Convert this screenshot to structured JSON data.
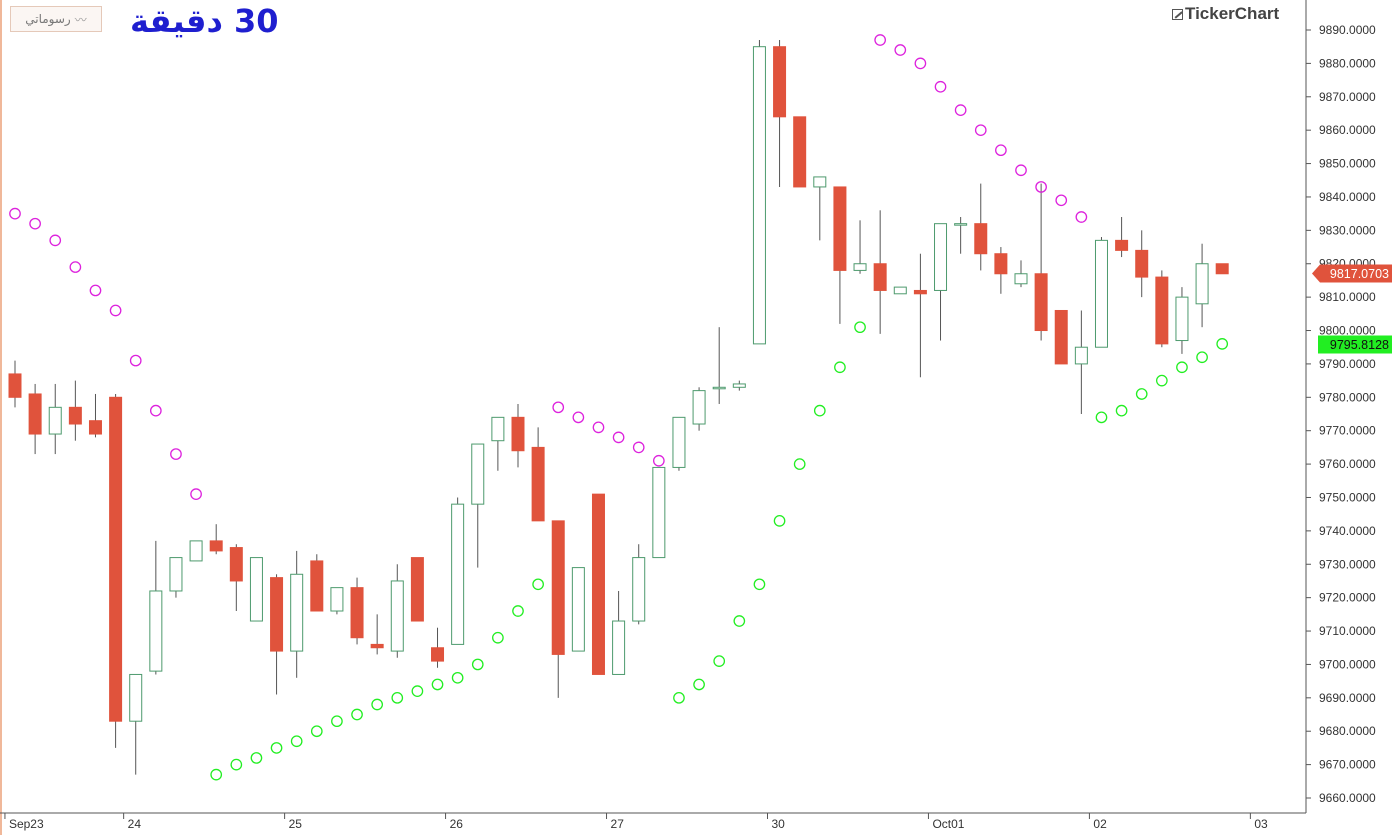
{
  "header": {
    "drawings_button_label": "رسوماتي",
    "drawings_icon": "line-chart-icon",
    "timeframe_label": "30 دقيقة",
    "brand_logo": "TickerChart"
  },
  "price_labels": {
    "last_price": "9817.0703",
    "last_price_color": "#e0533c",
    "indicator_value": "9795.8128",
    "indicator_color": "#22ee22"
  },
  "colors": {
    "up_candle": "#4d9a6d",
    "down_candle": "#e0533c",
    "sar_above": "#dd22dd",
    "sar_below": "#22ee22"
  },
  "chart_data": {
    "type": "candlestick",
    "y_axis": {
      "min": 9660,
      "max": 9890,
      "ticks": [
        "9660.0000",
        "9670.0000",
        "9680.0000",
        "9690.0000",
        "9700.0000",
        "9710.0000",
        "9720.0000",
        "9730.0000",
        "9740.0000",
        "9750.0000",
        "9760.0000",
        "9770.0000",
        "9780.0000",
        "9790.0000",
        "9800.0000",
        "9810.0000",
        "9820.0000",
        "9830.0000",
        "9840.0000",
        "9850.0000",
        "9860.0000",
        "9870.0000",
        "9880.0000",
        "9890.0000"
      ]
    },
    "x_axis": {
      "labels": [
        {
          "text": "Sep23",
          "index": -0.5
        },
        {
          "text": "24",
          "index": 5.4
        },
        {
          "text": "25",
          "index": 13.4
        },
        {
          "text": "26",
          "index": 21.4
        },
        {
          "text": "27",
          "index": 29.4
        },
        {
          "text": "30",
          "index": 37.4
        },
        {
          "text": "Oct01",
          "index": 45.4
        },
        {
          "text": "02",
          "index": 53.4
        },
        {
          "text": "03",
          "index": 61.4
        }
      ]
    },
    "candles": [
      {
        "o": 9787,
        "h": 9791,
        "l": 9777,
        "c": 9780
      },
      {
        "o": 9781,
        "h": 9784,
        "l": 9763,
        "c": 9769
      },
      {
        "o": 9769,
        "h": 9784,
        "l": 9763,
        "c": 9777
      },
      {
        "o": 9777,
        "h": 9785,
        "l": 9767,
        "c": 9772
      },
      {
        "o": 9773,
        "h": 9781,
        "l": 9768,
        "c": 9769
      },
      {
        "o": 9780,
        "h": 9781,
        "l": 9675,
        "c": 9683
      },
      {
        "o": 9683,
        "h": 9697,
        "l": 9667,
        "c": 9697
      },
      {
        "o": 9698,
        "h": 9737,
        "l": 9697,
        "c": 9722
      },
      {
        "o": 9722,
        "h": 9732,
        "l": 9720,
        "c": 9732
      },
      {
        "o": 9731,
        "h": 9737,
        "l": 9731,
        "c": 9737
      },
      {
        "o": 9737,
        "h": 9742,
        "l": 9733,
        "c": 9734
      },
      {
        "o": 9735,
        "h": 9736,
        "l": 9716,
        "c": 9725
      },
      {
        "o": 9713,
        "h": 9732,
        "l": 9713,
        "c": 9732
      },
      {
        "o": 9726,
        "h": 9727,
        "l": 9691,
        "c": 9704
      },
      {
        "o": 9704,
        "h": 9734,
        "l": 9696,
        "c": 9727
      },
      {
        "o": 9731,
        "h": 9733,
        "l": 9716,
        "c": 9716
      },
      {
        "o": 9716,
        "h": 9723,
        "l": 9715,
        "c": 9723
      },
      {
        "o": 9723,
        "h": 9726,
        "l": 9706,
        "c": 9708
      },
      {
        "o": 9706,
        "h": 9715,
        "l": 9703,
        "c": 9705
      },
      {
        "o": 9704,
        "h": 9730,
        "l": 9702,
        "c": 9725
      },
      {
        "o": 9732,
        "h": 9732,
        "l": 9713,
        "c": 9713
      },
      {
        "o": 9705,
        "h": 9711,
        "l": 9699,
        "c": 9701
      },
      {
        "o": 9706,
        "h": 9750,
        "l": 9706,
        "c": 9748
      },
      {
        "o": 9748,
        "h": 9766,
        "l": 9729,
        "c": 9766
      },
      {
        "o": 9767,
        "h": 9774,
        "l": 9758,
        "c": 9774
      },
      {
        "o": 9774,
        "h": 9778,
        "l": 9759,
        "c": 9764
      },
      {
        "o": 9765,
        "h": 9771,
        "l": 9743,
        "c": 9743
      },
      {
        "o": 9743,
        "h": 9743,
        "l": 9690,
        "c": 9703
      },
      {
        "o": 9704,
        "h": 9729,
        "l": 9704,
        "c": 9729
      },
      {
        "o": 9751,
        "h": 9751,
        "l": 9697,
        "c": 9697
      },
      {
        "o": 9697,
        "h": 9722,
        "l": 9697,
        "c": 9713
      },
      {
        "o": 9713,
        "h": 9736,
        "l": 9712,
        "c": 9732
      },
      {
        "o": 9732,
        "h": 9759,
        "l": 9732,
        "c": 9759
      },
      {
        "o": 9759,
        "h": 9774,
        "l": 9758,
        "c": 9774
      },
      {
        "o": 9772,
        "h": 9783,
        "l": 9770,
        "c": 9782
      },
      {
        "o": 9783,
        "h": 9801,
        "l": 9778,
        "c": 9783
      },
      {
        "o": 9783,
        "h": 9785,
        "l": 9782,
        "c": 9784
      },
      {
        "o": 9796,
        "h": 9887,
        "l": 9796,
        "c": 9885
      },
      {
        "o": 9885,
        "h": 9887,
        "l": 9843,
        "c": 9864
      },
      {
        "o": 9864,
        "h": 9864,
        "l": 9843,
        "c": 9843
      },
      {
        "o": 9843,
        "h": 9846,
        "l": 9827,
        "c": 9846
      },
      {
        "o": 9843,
        "h": 9843,
        "l": 9802,
        "c": 9818
      },
      {
        "o": 9818,
        "h": 9833,
        "l": 9817,
        "c": 9820
      },
      {
        "o": 9820,
        "h": 9836,
        "l": 9799,
        "c": 9812
      },
      {
        "o": 9811,
        "h": 9813,
        "l": 9811,
        "c": 9813
      },
      {
        "o": 9812,
        "h": 9823,
        "l": 9786,
        "c": 9811
      },
      {
        "o": 9812,
        "h": 9832,
        "l": 9797,
        "c": 9832
      },
      {
        "o": 9832,
        "h": 9834,
        "l": 9823,
        "c": 9832
      },
      {
        "o": 9832,
        "h": 9844,
        "l": 9818,
        "c": 9823
      },
      {
        "o": 9823,
        "h": 9825,
        "l": 9811,
        "c": 9817
      },
      {
        "o": 9814,
        "h": 9821,
        "l": 9813,
        "c": 9817
      },
      {
        "o": 9817,
        "h": 9844,
        "l": 9797,
        "c": 9800
      },
      {
        "o": 9806,
        "h": 9806,
        "l": 9790,
        "c": 9790
      },
      {
        "o": 9790,
        "h": 9806,
        "l": 9775,
        "c": 9795
      },
      {
        "o": 9795,
        "h": 9828,
        "l": 9795,
        "c": 9827
      },
      {
        "o": 9827,
        "h": 9834,
        "l": 9822,
        "c": 9824
      },
      {
        "o": 9824,
        "h": 9830,
        "l": 9810,
        "c": 9816
      },
      {
        "o": 9816,
        "h": 9818,
        "l": 9795,
        "c": 9796
      },
      {
        "o": 9797,
        "h": 9813,
        "l": 9793,
        "c": 9810
      },
      {
        "o": 9808,
        "h": 9826,
        "l": 9801,
        "c": 9820
      },
      {
        "o": 9820,
        "h": 9820,
        "l": 9817,
        "c": 9817
      }
    ],
    "parabolic_sar": [
      {
        "i": 0,
        "v": 9835,
        "pos": "above"
      },
      {
        "i": 1,
        "v": 9832,
        "pos": "above"
      },
      {
        "i": 2,
        "v": 9827,
        "pos": "above"
      },
      {
        "i": 3,
        "v": 9819,
        "pos": "above"
      },
      {
        "i": 4,
        "v": 9812,
        "pos": "above"
      },
      {
        "i": 5,
        "v": 9806,
        "pos": "above"
      },
      {
        "i": 6,
        "v": 9791,
        "pos": "above"
      },
      {
        "i": 7,
        "v": 9776,
        "pos": "above"
      },
      {
        "i": 8,
        "v": 9763,
        "pos": "above"
      },
      {
        "i": 9,
        "v": 9751,
        "pos": "above"
      },
      {
        "i": 10,
        "v": 9667,
        "pos": "below"
      },
      {
        "i": 11,
        "v": 9670,
        "pos": "below"
      },
      {
        "i": 12,
        "v": 9672,
        "pos": "below"
      },
      {
        "i": 13,
        "v": 9675,
        "pos": "below"
      },
      {
        "i": 14,
        "v": 9677,
        "pos": "below"
      },
      {
        "i": 15,
        "v": 9680,
        "pos": "below"
      },
      {
        "i": 16,
        "v": 9683,
        "pos": "below"
      },
      {
        "i": 17,
        "v": 9685,
        "pos": "below"
      },
      {
        "i": 18,
        "v": 9688,
        "pos": "below"
      },
      {
        "i": 19,
        "v": 9690,
        "pos": "below"
      },
      {
        "i": 20,
        "v": 9692,
        "pos": "below"
      },
      {
        "i": 21,
        "v": 9694,
        "pos": "below"
      },
      {
        "i": 22,
        "v": 9696,
        "pos": "below"
      },
      {
        "i": 23,
        "v": 9700,
        "pos": "below"
      },
      {
        "i": 24,
        "v": 9708,
        "pos": "below"
      },
      {
        "i": 25,
        "v": 9716,
        "pos": "below"
      },
      {
        "i": 26,
        "v": 9724,
        "pos": "below"
      },
      {
        "i": 27,
        "v": 9777,
        "pos": "above"
      },
      {
        "i": 28,
        "v": 9774,
        "pos": "above"
      },
      {
        "i": 29,
        "v": 9771,
        "pos": "above"
      },
      {
        "i": 30,
        "v": 9768,
        "pos": "above"
      },
      {
        "i": 31,
        "v": 9765,
        "pos": "above"
      },
      {
        "i": 32,
        "v": 9761,
        "pos": "above"
      },
      {
        "i": 33,
        "v": 9690,
        "pos": "below"
      },
      {
        "i": 34,
        "v": 9694,
        "pos": "below"
      },
      {
        "i": 35,
        "v": 9701,
        "pos": "below"
      },
      {
        "i": 36,
        "v": 9713,
        "pos": "below"
      },
      {
        "i": 37,
        "v": 9724,
        "pos": "below"
      },
      {
        "i": 38,
        "v": 9743,
        "pos": "below"
      },
      {
        "i": 39,
        "v": 9760,
        "pos": "below"
      },
      {
        "i": 40,
        "v": 9776,
        "pos": "below"
      },
      {
        "i": 41,
        "v": 9789,
        "pos": "below"
      },
      {
        "i": 42,
        "v": 9801,
        "pos": "below"
      },
      {
        "i": 43,
        "v": 9887,
        "pos": "above"
      },
      {
        "i": 44,
        "v": 9884,
        "pos": "above"
      },
      {
        "i": 45,
        "v": 9880,
        "pos": "above"
      },
      {
        "i": 46,
        "v": 9873,
        "pos": "above"
      },
      {
        "i": 47,
        "v": 9866,
        "pos": "above"
      },
      {
        "i": 48,
        "v": 9860,
        "pos": "above"
      },
      {
        "i": 49,
        "v": 9854,
        "pos": "above"
      },
      {
        "i": 50,
        "v": 9848,
        "pos": "above"
      },
      {
        "i": 51,
        "v": 9843,
        "pos": "above"
      },
      {
        "i": 52,
        "v": 9839,
        "pos": "above"
      },
      {
        "i": 53,
        "v": 9834,
        "pos": "above"
      },
      {
        "i": 54,
        "v": 9774,
        "pos": "below"
      },
      {
        "i": 55,
        "v": 9776,
        "pos": "below"
      },
      {
        "i": 56,
        "v": 9781,
        "pos": "below"
      },
      {
        "i": 57,
        "v": 9785,
        "pos": "below"
      },
      {
        "i": 58,
        "v": 9789,
        "pos": "below"
      },
      {
        "i": 59,
        "v": 9792,
        "pos": "below"
      },
      {
        "i": 60,
        "v": 9796,
        "pos": "below"
      }
    ]
  }
}
